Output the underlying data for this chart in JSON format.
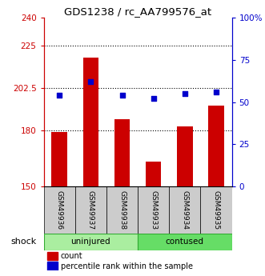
{
  "title": "GDS1238 / rc_AA799576_at",
  "samples": [
    "GSM49936",
    "GSM49937",
    "GSM49938",
    "GSM49933",
    "GSM49934",
    "GSM49935"
  ],
  "bar_bottom": 150,
  "bar_values": [
    179,
    219,
    186,
    163,
    182,
    193
  ],
  "percentile_values": [
    54,
    62,
    54,
    52,
    55,
    56
  ],
  "ylim_left": [
    150,
    240
  ],
  "ylim_right": [
    0,
    100
  ],
  "yticks_left": [
    150,
    180,
    202.5,
    225,
    240
  ],
  "ytick_labels_left": [
    "150",
    "180",
    "202.5",
    "225",
    "240"
  ],
  "yticks_right": [
    0,
    25,
    50,
    75,
    100
  ],
  "ytick_labels_right": [
    "0",
    "25",
    "50",
    "75",
    "100%"
  ],
  "hlines": [
    180,
    202.5,
    225
  ],
  "bar_color": "#CC0000",
  "dot_color": "#0000CC",
  "bar_width": 0.5,
  "legend_count_label": "count",
  "legend_pct_label": "percentile rank within the sample",
  "shock_label": "shock",
  "uninjured_label": "uninjured",
  "contused_label": "contused",
  "uninjured_color": "#AAEEA0",
  "contused_color": "#66DD66",
  "sample_bg_color": "#CCCCCC",
  "group_border_color": "#33AA33"
}
